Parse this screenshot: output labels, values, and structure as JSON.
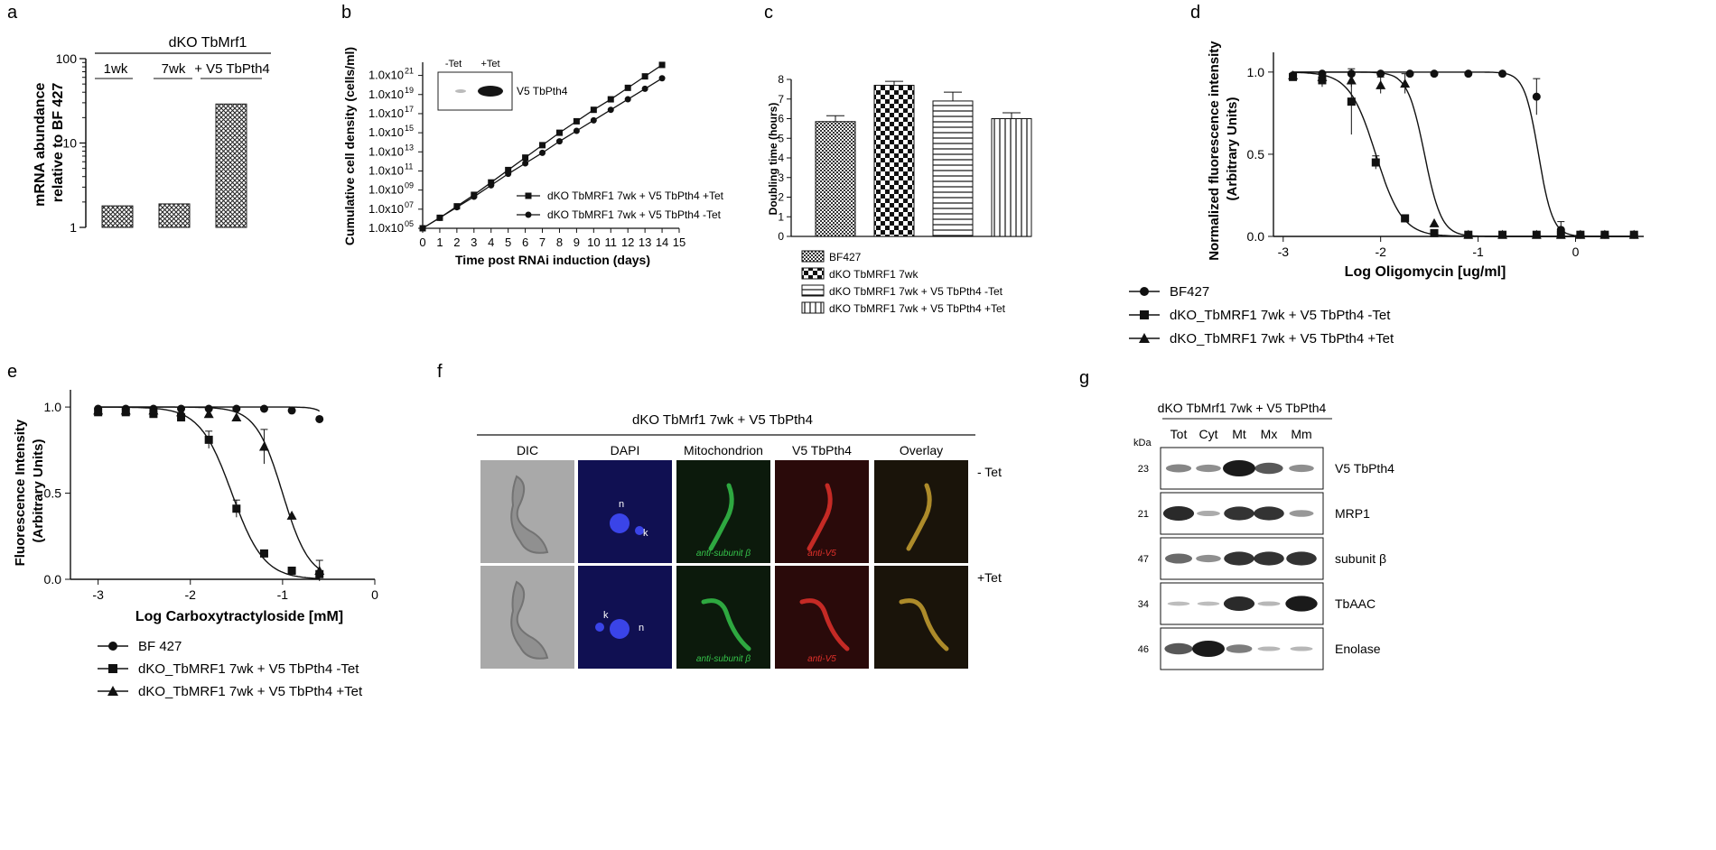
{
  "panel_letters": [
    "a",
    "b",
    "c",
    "d",
    "e",
    "f",
    "g"
  ],
  "colors": {
    "ink": "#111111",
    "dic_bg": "#a9a9a9",
    "dapi_bg": "#101052",
    "dapi_signal": "#3a44e8",
    "mito_bg": "#0c1a0c",
    "mito_signal": "#35c24a",
    "v5_bg": "#2a0a0a",
    "v5_signal": "#e0302a",
    "overlay_bg": "#1a140a",
    "overlay_signal": "#c8a030",
    "blot_band": "#1a1a1a"
  },
  "panel_a": {
    "header": "dKO TbMrf1",
    "group_labels": [
      "1wk",
      "7wk",
      "+ V5 TbPth4"
    ],
    "chart_data": {
      "type": "bar",
      "scale": "log",
      "categories": [
        "1wk",
        "7wk",
        "+ V5 TbPth4"
      ],
      "values": [
        1.8,
        1.9,
        29
      ],
      "ylabel": "mRNA abundance relative to BF 427",
      "ylim": [
        1,
        100
      ],
      "ytick_labels": [
        "1",
        "10",
        "100"
      ]
    }
  },
  "panel_b": {
    "inset_labels": [
      "-Tet",
      "+Tet"
    ],
    "inset_band_label": "V5 TbPth4",
    "chart_data": {
      "type": "line",
      "xlabel": "Time post RNAi induction (days)",
      "ylabel": "Cumulative cell density (cells/ml)",
      "xlim": [
        0,
        15
      ],
      "ylim_log10": [
        5,
        22
      ],
      "x_ticks": [
        "0",
        "1",
        "2",
        "3",
        "4",
        "5",
        "6",
        "7",
        "8",
        "9",
        "10",
        "11",
        "12",
        "13",
        "14",
        "15"
      ],
      "y_tick_exponents": [
        "05",
        "07",
        "09",
        "11",
        "13",
        "15",
        "17",
        "19",
        "21"
      ],
      "y_tick_base": "1.0x10",
      "series": [
        {
          "name": "dKO TbMRF1 7wk + V5 TbPth4 +Tet",
          "marker": "square",
          "x": [
            0,
            1,
            2,
            3,
            4,
            5,
            6,
            7,
            8,
            9,
            10,
            11,
            12,
            13,
            14
          ],
          "log10_values": [
            5,
            6.1,
            7.3,
            8.5,
            9.8,
            11.1,
            12.4,
            13.7,
            15.0,
            16.2,
            17.4,
            18.5,
            19.7,
            20.9,
            22.1
          ]
        },
        {
          "name": "dKO TbMRF1 7wk + V5 TbPth4 -Tet",
          "marker": "circle",
          "x": [
            0,
            1,
            2,
            3,
            4,
            5,
            6,
            7,
            8,
            9,
            10,
            11,
            12,
            13,
            14
          ],
          "log10_values": [
            5,
            6.1,
            7.2,
            8.3,
            9.5,
            10.7,
            11.8,
            12.9,
            14.1,
            15.2,
            16.3,
            17.4,
            18.5,
            19.6,
            20.7
          ]
        }
      ]
    }
  },
  "panel_c": {
    "chart_data": {
      "type": "bar",
      "ylabel": "Doubling time (hours)",
      "ylim": [
        0,
        8
      ],
      "y_ticks": [
        "0",
        "1",
        "2",
        "3",
        "4",
        "5",
        "6",
        "7",
        "8"
      ],
      "categories": [
        "BF427",
        "dKO TbMRF1 7wk",
        "dKO TbMRF1 7wk + V5 TbPth4 -Tet",
        "dKO TbMRF1 7wk + V5 TbPth4 +Tet"
      ],
      "values": [
        5.85,
        7.7,
        6.9,
        6.0
      ],
      "errors": [
        0.3,
        0.2,
        0.45,
        0.3
      ],
      "patterns": [
        "fine-check",
        "check",
        "horizontal",
        "vertical"
      ]
    }
  },
  "panel_d": {
    "chart_data": {
      "type": "line",
      "xlabel": "Log Oligomycin [ug/ml]",
      "ylabel": "Normalized fluorescence intensity (Arbitrary Units)",
      "xlim": [
        -3.1,
        0.7
      ],
      "ylim": [
        0,
        1.12
      ],
      "x_ticks": [
        "-3",
        "-2",
        "-1",
        "0"
      ],
      "y_ticks": [
        "0.0",
        "0.5",
        "1.0"
      ],
      "series": [
        {
          "name": "BF427",
          "marker": "circle",
          "ic50": -0.38,
          "hill": 6,
          "x": [
            -2.9,
            -2.6,
            -2.3,
            -2.0,
            -1.7,
            -1.45,
            -1.1,
            -0.75,
            -0.4,
            -0.15,
            0.05,
            0.3,
            0.6
          ],
          "y": [
            0.98,
            0.99,
            0.99,
            0.99,
            0.99,
            0.99,
            0.99,
            0.99,
            0.85,
            0.04,
            0.01,
            0.01,
            0.01
          ],
          "err": [
            0.03,
            0.02,
            0.02,
            0.02,
            0.02,
            0.02,
            0.03,
            0.03,
            0.11,
            0.05,
            0.02,
            0.02,
            0.02
          ]
        },
        {
          "name": "dKO_TbMRF1 7wk + V5 TbPth4 -Tet",
          "marker": "square",
          "ic50": -2.05,
          "hill": 3.2,
          "x": [
            -2.9,
            -2.6,
            -2.3,
            -2.05,
            -1.75,
            -1.45,
            -1.1,
            -0.75,
            -0.4,
            -0.15,
            0.05,
            0.3,
            0.6
          ],
          "y": [
            0.97,
            0.95,
            0.82,
            0.45,
            0.11,
            0.02,
            0.01,
            0.01,
            0.01,
            0.01,
            0.01,
            0.01,
            0.01
          ],
          "err": [
            0.03,
            0.04,
            0.2,
            0.04,
            0.03,
            0.02,
            0.02,
            0.02,
            0.02,
            0.02,
            0.02,
            0.02,
            0.02
          ]
        },
        {
          "name": "dKO_TbMRF1 7wk + V5 TbPth4 +Tet",
          "marker": "triangle",
          "ic50": -1.55,
          "hill": 5,
          "x": [
            -2.9,
            -2.6,
            -2.3,
            -2.0,
            -1.75,
            -1.45,
            -1.1,
            -0.75,
            -0.4,
            -0.15,
            0.05,
            0.3,
            0.6
          ],
          "y": [
            0.98,
            0.97,
            0.95,
            0.92,
            0.93,
            0.08,
            0.01,
            0.01,
            0.01,
            0.01,
            0.01,
            0.01,
            0.01
          ],
          "err": [
            0.03,
            0.03,
            0.04,
            0.05,
            0.06,
            0.03,
            0.02,
            0.02,
            0.02,
            0.02,
            0.02,
            0.02,
            0.02
          ]
        }
      ]
    }
  },
  "panel_e": {
    "chart_data": {
      "type": "line",
      "xlabel": "Log Carboxytractyloside [mM]",
      "ylabel": "Fluorescence Intensity (Arbitrary Units)",
      "xlim": [
        -3.3,
        0
      ],
      "ylim": [
        0,
        1.1
      ],
      "x_ticks": [
        "-3",
        "-2",
        "-1",
        "0"
      ],
      "y_ticks": [
        "0.0",
        "0.5",
        "1.0"
      ],
      "series": [
        {
          "name": "BF 427",
          "marker": "circle",
          "ic50": -0.33,
          "hill": 6,
          "x": [
            -3.0,
            -2.7,
            -2.4,
            -2.1,
            -1.8,
            -1.5,
            -1.2,
            -0.9,
            -0.6
          ],
          "y": [
            0.99,
            0.99,
            0.99,
            0.99,
            0.99,
            0.99,
            0.99,
            0.98,
            0.93
          ],
          "err": [
            0.02,
            0.02,
            0.02,
            0.02,
            0.02,
            0.02,
            0.02,
            0.02,
            0.03
          ]
        },
        {
          "name": "dKO_TbMRF1 7wk + V5 TbPth4 -Tet",
          "marker": "square",
          "ic50": -1.55,
          "hill": 2.5,
          "x": [
            -3.0,
            -2.7,
            -2.4,
            -2.1,
            -1.8,
            -1.5,
            -1.2,
            -0.9,
            -0.6
          ],
          "y": [
            0.97,
            0.97,
            0.96,
            0.94,
            0.81,
            0.41,
            0.15,
            0.05,
            0.03
          ],
          "err": [
            0.03,
            0.03,
            0.03,
            0.03,
            0.05,
            0.05,
            0.03,
            0.02,
            0.03
          ]
        },
        {
          "name": "dKO_TbMRF1 7wk + V5 TbPth4 +Tet",
          "marker": "triangle",
          "ic50": -1.0,
          "hill": 3,
          "x": [
            -3.0,
            -2.7,
            -2.4,
            -2.1,
            -1.8,
            -1.5,
            -1.2,
            -0.9,
            -0.6
          ],
          "y": [
            0.98,
            0.98,
            0.98,
            0.97,
            0.96,
            0.94,
            0.77,
            0.37,
            0.05
          ],
          "err": [
            0.02,
            0.02,
            0.02,
            0.02,
            0.02,
            0.03,
            0.1,
            0.03,
            0.06
          ]
        }
      ]
    }
  },
  "panel_f": {
    "title": "dKO TbMrf1 7wk + V5 TbPth4",
    "columns": [
      "DIC",
      "DAPI",
      "Mitochondrion",
      "V5 TbPth4",
      "Overlay"
    ],
    "rows": [
      "- Tet",
      "+Tet"
    ],
    "dapi_marks": [
      "n",
      "k"
    ],
    "stain_labels": [
      "anti-subunit β",
      "anti-V5"
    ]
  },
  "panel_g": {
    "title": "dKO TbMrf1 7wk + V5 TbPth4",
    "kda_label": "kDa",
    "lanes": [
      "Tot",
      "Cyt",
      "Mt",
      "Mx",
      "Mm"
    ],
    "blots": [
      {
        "name": "V5 TbPth4",
        "kda": "23",
        "intensities": [
          0.35,
          0.3,
          1.0,
          0.6,
          0.3
        ]
      },
      {
        "name": "MRP1",
        "kda": "21",
        "intensities": [
          0.85,
          0.15,
          0.8,
          0.8,
          0.25
        ]
      },
      {
        "name": "subunit β",
        "kda": "47",
        "intensities": [
          0.5,
          0.3,
          0.8,
          0.8,
          0.8
        ]
      },
      {
        "name": "TbAAC",
        "kda": "34",
        "intensities": [
          0.05,
          0.05,
          0.85,
          0.08,
          0.95
        ]
      },
      {
        "name": "Enolase",
        "kda": "46",
        "intensities": [
          0.6,
          1.0,
          0.4,
          0.08,
          0.08
        ]
      }
    ]
  }
}
